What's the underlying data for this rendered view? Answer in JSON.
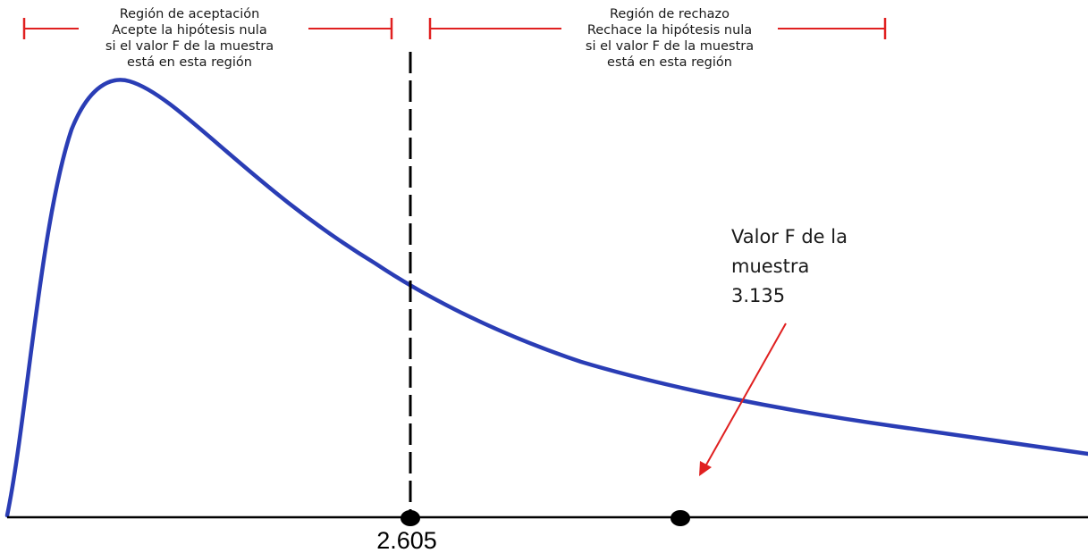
{
  "acceptance_region": {
    "lines": [
      "Región de aceptación",
      "Acepte la hipótesis nula",
      "si el valor F de la muestra",
      "está en esta región"
    ]
  },
  "rejection_region": {
    "lines": [
      "Región de rechazo",
      "Rechace la hipótesis nula",
      "si el valor F de la muestra",
      "está en esta región"
    ]
  },
  "sample_annotation": {
    "lines": [
      "Valor F de la",
      "muestra",
      "3.135"
    ]
  },
  "critical_value_label": "2.605",
  "colors": {
    "curve": "#2a3db5",
    "bracket": "#e02020",
    "arrow": "#e02020",
    "axis": "#000000",
    "critical_line": "#000000"
  }
}
